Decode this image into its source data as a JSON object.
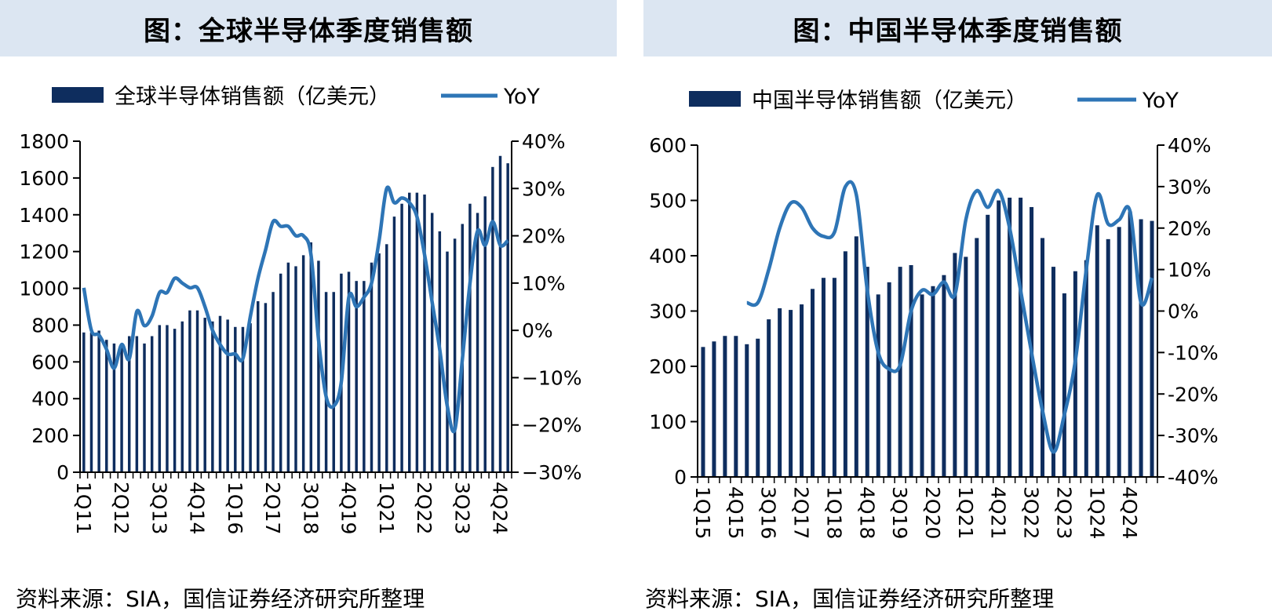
{
  "charts": [
    {
      "title": "图：全球半导体季度销售额",
      "source": "资料来源：SIA，国信证券经济研究所整理",
      "chart_data": {
        "type": "bar",
        "legend_placement": "top",
        "series": [
          {
            "name": "全球半导体销售额（亿美元）",
            "type": "bar",
            "axis": "left",
            "color": "#0e2d5e",
            "values": [
              760,
              760,
              770,
              720,
              700,
              700,
              740,
              740,
              700,
              740,
              800,
              800,
              780,
              820,
              880,
              880,
              840,
              820,
              850,
              830,
              790,
              790,
              810,
              930,
              920,
              980,
              1080,
              1140,
              1120,
              1180,
              1250,
              1150,
              980,
              980,
              1080,
              1090,
              1040,
              1040,
              1140,
              1190,
              1240,
              1390,
              1460,
              1520,
              1520,
              1510,
              1410,
              1310,
              1200,
              1270,
              1350,
              1460,
              1410,
              1500,
              1660,
              1720,
              1680
            ]
          },
          {
            "name": "YoY",
            "type": "line",
            "axis": "right",
            "color": "#2e75b6",
            "values": [
              9,
              0,
              -1,
              -4,
              -8,
              -3,
              -6,
              4,
              1,
              3,
              8,
              8,
              11,
              10,
              9,
              9,
              5,
              0,
              -3,
              -5,
              -5,
              -6,
              3,
              11,
              17,
              23,
              22,
              22,
              20,
              20,
              16,
              -2,
              -14,
              -16,
              -11,
              7,
              5,
              7,
              10,
              19,
              30,
              27,
              28,
              27,
              24,
              16,
              6,
              -4,
              -16,
              -21,
              -6,
              10,
              21,
              18,
              23,
              18,
              19
            ]
          }
        ],
        "category_labels": [
          "1Q11",
          "2Q12",
          "3Q13",
          "4Q14",
          "1Q16",
          "2Q17",
          "3Q18",
          "4Q19",
          "1Q21",
          "2Q22",
          "3Q23",
          "4Q24"
        ],
        "label_indices": [
          0,
          5,
          10,
          15,
          20,
          25,
          30,
          35,
          40,
          45,
          50,
          55
        ],
        "ylim_left": [
          0,
          1800
        ],
        "yticks_left": [
          "0",
          "200",
          "400",
          "600",
          "800",
          "1000",
          "1200",
          "1400",
          "1600",
          "1800"
        ],
        "ylim_right": [
          -30,
          40
        ],
        "yticks_right": [
          "−30%",
          "−20%",
          "−10%",
          "0%",
          "10%",
          "20%",
          "30%",
          "40%"
        ]
      }
    },
    {
      "title": "图：中国半导体季度销售额",
      "source": "资料来源：SIA，国信证券经济研究所整理",
      "chart_data": {
        "type": "bar",
        "legend_placement": "top",
        "series": [
          {
            "name": "中国半导体销售额（亿美元）",
            "type": "bar",
            "axis": "left",
            "color": "#0e2d5e",
            "values": [
              235,
              245,
              255,
              255,
              240,
              250,
              285,
              305,
              302,
              312,
              340,
              360,
              360,
              408,
              435,
              380,
              330,
              352,
              380,
              383,
              330,
              345,
              365,
              405,
              398,
              432,
              474,
              500,
              505,
              505,
              488,
              432,
              380,
              332,
              372,
              392,
              455,
              430,
              452,
              480,
              466,
              463
            ]
          },
          {
            "name": "YoY",
            "type": "line",
            "axis": "right",
            "color": "#2e75b6",
            "values": [
              null,
              null,
              null,
              null,
              2,
              2,
              10,
              20,
              26,
              25,
              20,
              18,
              19,
              30,
              28,
              5,
              -10,
              -14,
              -13,
              0,
              5,
              4,
              7,
              4,
              22,
              29,
              25,
              29,
              20,
              5,
              -10,
              -24,
              -34,
              -25,
              -12,
              10,
              28,
              21,
              22,
              24,
              2,
              8
            ]
          }
        ],
        "category_labels": [
          "1Q15",
          "4Q15",
          "3Q16",
          "2Q17",
          "1Q18",
          "4Q18",
          "3Q19",
          "2Q20",
          "1Q21",
          "4Q21",
          "3Q22",
          "2Q23",
          "1Q24",
          "4Q24"
        ],
        "label_indices": [
          0,
          3,
          6,
          9,
          12,
          15,
          18,
          21,
          24,
          27,
          30,
          33,
          36,
          39
        ],
        "ylim_left": [
          0,
          600
        ],
        "yticks_left": [
          "0",
          "100",
          "200",
          "300",
          "400",
          "500",
          "600"
        ],
        "ylim_right": [
          -40,
          40
        ],
        "yticks_right": [
          "-40%",
          "-30%",
          "-20%",
          "-10%",
          "0%",
          "10%",
          "20%",
          "30%",
          "40%"
        ]
      }
    }
  ]
}
